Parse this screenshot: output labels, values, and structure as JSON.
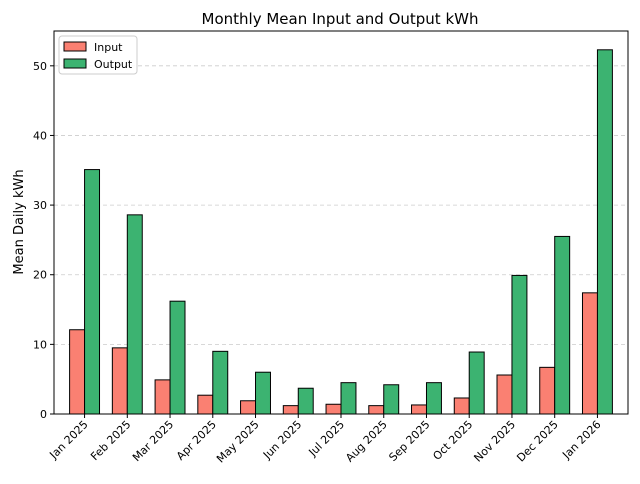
{
  "chart_data": {
    "type": "bar",
    "title": "Monthly Mean Input and Output kWh",
    "xlabel": "",
    "ylabel": "Mean Daily kWh",
    "ylim": [
      0,
      55
    ],
    "yticks": [
      0,
      10,
      20,
      30,
      40,
      50
    ],
    "grid": "horizontal dashed",
    "legend_position": "top-left",
    "categories": [
      "Jan 2025",
      "Feb 2025",
      "Mar 2025",
      "Apr 2025",
      "May 2025",
      "Jun 2025",
      "Jul 2025",
      "Aug 2025",
      "Sep 2025",
      "Oct 2025",
      "Nov 2025",
      "Dec 2025",
      "Jan 2026"
    ],
    "series": [
      {
        "name": "Input",
        "color": "#fa8072",
        "values": [
          12.1,
          9.5,
          4.9,
          2.7,
          1.9,
          1.2,
          1.4,
          1.2,
          1.3,
          2.3,
          5.6,
          6.7,
          17.4
        ]
      },
      {
        "name": "Output",
        "color": "#3cb371",
        "values": [
          35.1,
          28.6,
          16.2,
          9.0,
          6.0,
          3.7,
          4.5,
          4.2,
          4.5,
          8.9,
          19.9,
          25.5,
          52.3
        ]
      }
    ]
  }
}
